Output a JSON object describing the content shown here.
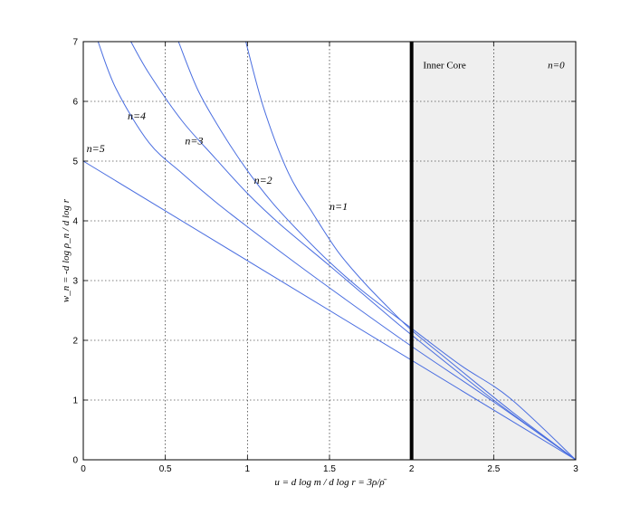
{
  "chart_data": {
    "type": "line",
    "title": "",
    "xlabel": "u = d log m / d log r = 3ρ/ρ̄",
    "ylabel": "w_n = -d log ρ_n / d log r",
    "xlim": [
      0,
      3
    ],
    "ylim": [
      0,
      7
    ],
    "xticks": [
      0,
      0.5,
      1,
      1.5,
      2,
      2.5,
      3
    ],
    "xtick_labels": [
      "0",
      "0.5",
      "1",
      "1.5",
      "2",
      "2.5",
      "3"
    ],
    "yticks": [
      0,
      1,
      2,
      3,
      4,
      5,
      6,
      7
    ],
    "ytick_labels": [
      "0",
      "1",
      "2",
      "3",
      "4",
      "5",
      "6",
      "7"
    ],
    "grid": true,
    "series_color": "#4a6ee0",
    "series": [
      {
        "name": "n=1",
        "x": [
          0.99,
          1.1,
          1.25,
          1.4,
          1.55,
          1.7,
          1.85,
          2.0,
          2.2,
          2.4,
          2.6,
          2.8,
          3.0
        ],
        "y": [
          7.0,
          5.88,
          4.8,
          4.12,
          3.49,
          3.0,
          2.57,
          2.17,
          1.72,
          1.27,
          0.83,
          0.41,
          0.0
        ]
      },
      {
        "name": "n=2",
        "x": [
          0.58,
          0.7,
          0.85,
          1.0,
          1.15,
          1.3,
          1.5,
          1.7,
          2.0,
          2.3,
          2.6,
          3.0
        ],
        "y": [
          7.0,
          6.18,
          5.46,
          4.84,
          4.31,
          3.86,
          3.31,
          2.83,
          2.2,
          1.58,
          1.03,
          0.0
        ]
      },
      {
        "name": "n=3",
        "x": [
          0.29,
          0.4,
          0.6,
          0.8,
          1.0,
          1.2,
          1.5,
          1.8,
          2.0,
          2.5,
          3.0
        ],
        "y": [
          7.0,
          6.47,
          5.68,
          5.06,
          4.46,
          3.94,
          3.25,
          2.55,
          2.09,
          1.0,
          0.0
        ]
      },
      {
        "name": "n=4",
        "x": [
          0.09,
          0.2,
          0.4,
          0.6,
          0.8,
          1.0,
          1.3,
          1.6,
          2.0,
          2.5,
          3.0
        ],
        "y": [
          7.0,
          6.21,
          5.31,
          4.8,
          4.33,
          3.9,
          3.28,
          2.68,
          1.9,
          0.97,
          0.0
        ]
      },
      {
        "name": "n=5",
        "x": [
          0,
          3.0
        ],
        "y": [
          5.0,
          0.0
        ]
      }
    ],
    "curve_labels": [
      {
        "text": "n=5",
        "x": 0.02,
        "y": 5.15
      },
      {
        "text": "n=4",
        "x": 0.27,
        "y": 5.7
      },
      {
        "text": "n=3",
        "x": 0.62,
        "y": 5.28
      },
      {
        "text": "n=2",
        "x": 1.04,
        "y": 4.62
      },
      {
        "text": "n=1",
        "x": 1.5,
        "y": 4.18
      }
    ],
    "vertical_line": {
      "x": 2.0,
      "color": "#000000"
    },
    "shaded_region": {
      "x_from": 2.0,
      "x_to": 3.0,
      "color": "#efefef"
    },
    "region_labels": [
      {
        "text": "Inner Core",
        "x": 2.07,
        "y": 6.55
      },
      {
        "text": "n=0",
        "x": 2.83,
        "y": 6.55
      }
    ]
  }
}
